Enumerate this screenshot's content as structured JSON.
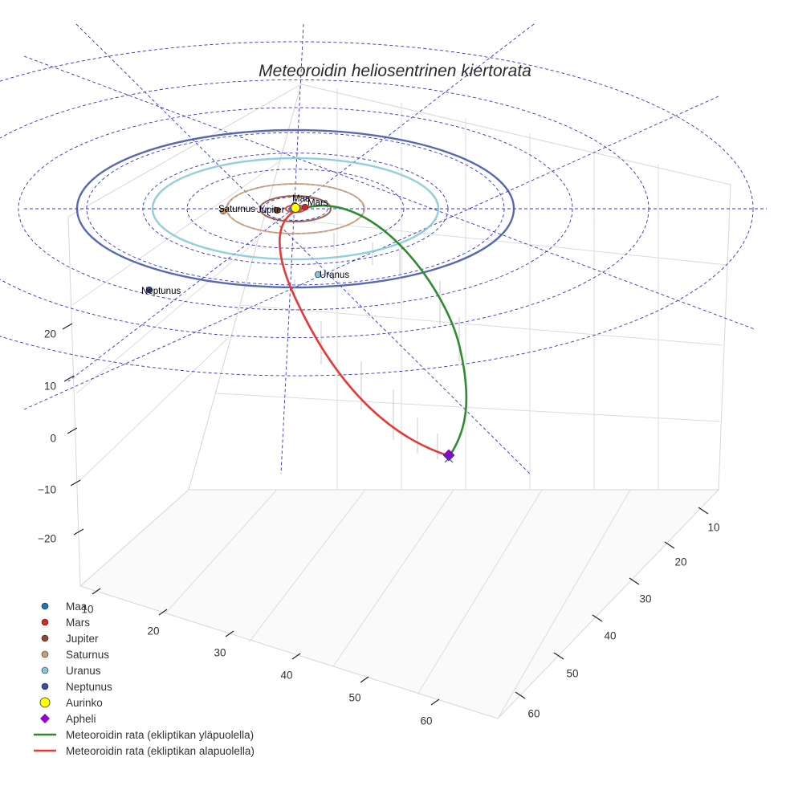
{
  "chart_data": {
    "type": "scatter3d",
    "title": "Meteoroidin heliosentrinen kiertorata",
    "axes": {
      "x_ticks": [
        "10",
        "20",
        "30",
        "40",
        "50",
        "60"
      ],
      "y_ticks": [
        "10",
        "20",
        "30",
        "40",
        "50",
        "60"
      ],
      "z_ticks": [
        "20",
        "10",
        "0",
        "−10",
        "−20"
      ]
    },
    "planets": [
      {
        "name": "Maa",
        "color": "#1f77b4"
      },
      {
        "name": "Mars",
        "color": "#d62728"
      },
      {
        "name": "Jupiter",
        "color": "#8c4a2f"
      },
      {
        "name": "Saturnus",
        "color": "#c8a078"
      },
      {
        "name": "Uranus",
        "color": "#7fc6d6"
      },
      {
        "name": "Neptunus",
        "color": "#3a4fa3"
      }
    ],
    "sun": {
      "name": "Aurinko",
      "color": "#ffff00"
    },
    "aphelion": {
      "name": "Apheli",
      "color": "#9400d3"
    },
    "orbit_above": {
      "name": "Meteoroidin rata (ekliptikan yläpuolella)",
      "color": "#2e8b2e"
    },
    "orbit_below": {
      "name": "Meteoroidin rata (ekliptikan alapuolella)",
      "color": "#e53935"
    },
    "grid": true
  },
  "legend": [
    {
      "label": "Maa",
      "kind": "dot",
      "color": "#1f77b4"
    },
    {
      "label": "Mars",
      "kind": "dot",
      "color": "#d62728"
    },
    {
      "label": "Jupiter",
      "kind": "dot",
      "color": "#8c4a2f"
    },
    {
      "label": "Saturnus",
      "kind": "dot",
      "color": "#c8a078"
    },
    {
      "label": "Uranus",
      "kind": "dot",
      "color": "#7fc6d6"
    },
    {
      "label": "Neptunus",
      "kind": "dot",
      "color": "#3a4fa3"
    },
    {
      "label": "Aurinko",
      "kind": "sun",
      "color": "#ffff00"
    },
    {
      "label": "Apheli",
      "kind": "diamond",
      "color": "#9400d3"
    },
    {
      "label": "Meteoroidin rata (ekliptikan yläpuolella)",
      "kind": "line",
      "color": "#2e8b2e"
    },
    {
      "label": "Meteoroidin rata (ekliptikan alapuolella)",
      "kind": "line",
      "color": "#e53935"
    }
  ]
}
